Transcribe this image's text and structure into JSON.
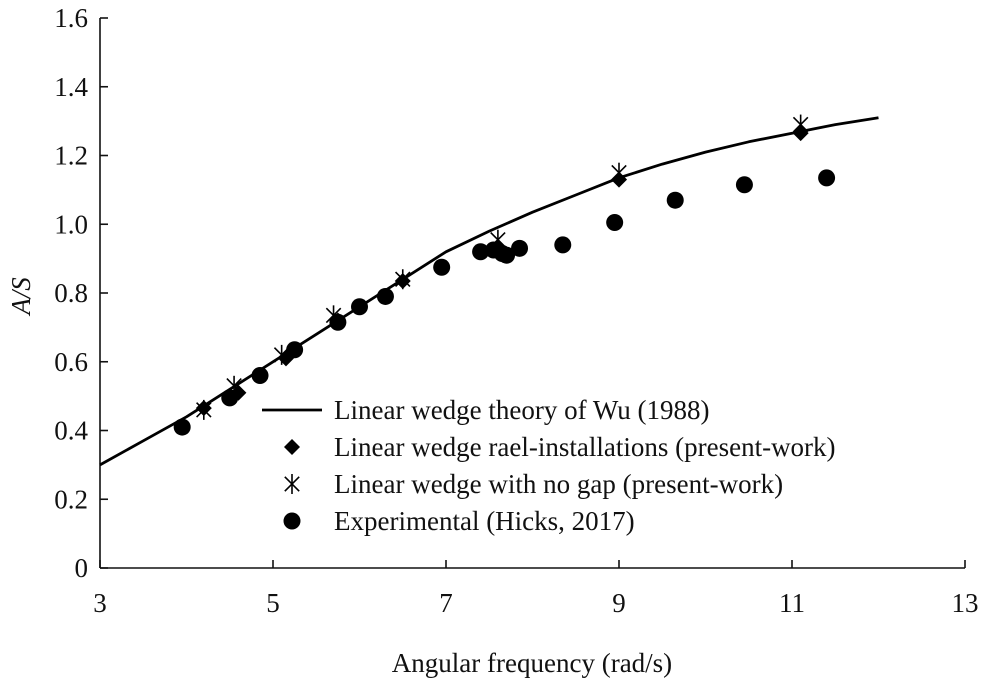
{
  "chart_data": {
    "type": "scatter",
    "title": "",
    "xlabel": "Angular frequency (rad/s)",
    "ylabel": "A/S",
    "xlim": [
      3,
      13
    ],
    "ylim": [
      0,
      1.6
    ],
    "x_ticks": [
      "3",
      "5",
      "7",
      "9",
      "11",
      "13"
    ],
    "y_ticks": [
      "0",
      "0.2",
      "0.4",
      "0.6",
      "0.8",
      "1.0",
      "1.2",
      "1.4",
      "1.6"
    ],
    "grid": false,
    "legend_position": "lower-right",
    "series": [
      {
        "name": "Linear wedge theory of Wu (1988)",
        "style": "line",
        "color": "#000000",
        "x": [
          3.0,
          3.5,
          4.0,
          4.5,
          5.0,
          5.5,
          6.0,
          6.5,
          7.0,
          7.5,
          8.0,
          8.5,
          9.0,
          9.5,
          10.0,
          10.5,
          11.0,
          11.5,
          12.0
        ],
        "y": [
          0.3,
          0.37,
          0.44,
          0.52,
          0.6,
          0.68,
          0.76,
          0.84,
          0.92,
          0.98,
          1.035,
          1.085,
          1.135,
          1.175,
          1.21,
          1.24,
          1.265,
          1.29,
          1.31
        ]
      },
      {
        "name": "Linear wedge rael-installations (present-work)",
        "style": "diamond",
        "color": "#000000",
        "x": [
          4.2,
          4.6,
          5.15,
          5.75,
          6.5,
          7.6,
          9.0,
          11.1
        ],
        "y": [
          0.465,
          0.51,
          0.61,
          0.72,
          0.835,
          0.935,
          1.13,
          1.265
        ]
      },
      {
        "name": "Linear wedge with no gap (present-work)",
        "style": "star",
        "color": "#000000",
        "x": [
          4.2,
          4.55,
          5.1,
          5.7,
          6.5,
          7.6,
          9.0,
          11.1
        ],
        "y": [
          0.46,
          0.53,
          0.62,
          0.735,
          0.84,
          0.955,
          1.15,
          1.29
        ]
      },
      {
        "name": "Experimental (Hicks, 2017)",
        "style": "circle",
        "color": "#000000",
        "x": [
          3.95,
          4.5,
          4.85,
          5.25,
          5.75,
          6.0,
          6.3,
          6.95,
          7.4,
          7.55,
          7.65,
          7.7,
          7.85,
          8.35,
          8.95,
          9.65,
          10.45,
          11.4
        ],
        "y": [
          0.41,
          0.495,
          0.56,
          0.635,
          0.715,
          0.76,
          0.79,
          0.875,
          0.92,
          0.925,
          0.915,
          0.91,
          0.93,
          0.94,
          1.005,
          1.07,
          1.115,
          1.135
        ]
      }
    ]
  }
}
